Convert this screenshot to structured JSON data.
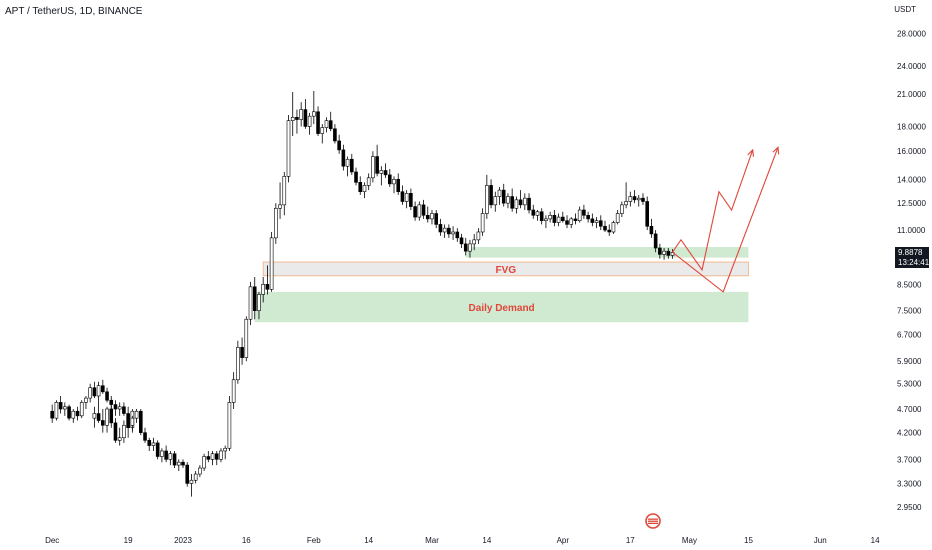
{
  "header": {
    "title": "APT / TetherUS, 1D, BINANCE",
    "unit": "USDT"
  },
  "price_tag": {
    "price": "9.8878",
    "countdown": "13:24:41"
  },
  "colors": {
    "up": "#ffffff",
    "down": "#000000",
    "wick": "#000000",
    "zone": "#c8e6c9",
    "fvg_border": "#f5a66b",
    "fvg_fill": "#e8e8e8",
    "arrow": "#e0463a",
    "label": "#e0463a"
  },
  "chart_data": {
    "type": "candlestick",
    "scale": "log",
    "y_ticks": [
      "28.0000",
      "24.0000",
      "21.0000",
      "18.0000",
      "16.0000",
      "14.0000",
      "12.5000",
      "11.0000",
      "9.7000",
      "8.5000",
      "7.5000",
      "6.7000",
      "5.9000",
      "5.3000",
      "4.7000",
      "4.2000",
      "3.7000",
      "3.3000",
      "2.9500"
    ],
    "x_ticks": [
      "Dec",
      "19",
      "2023",
      "16",
      "Feb",
      "14",
      "Mar",
      "14",
      "Apr",
      "17",
      "May",
      "15",
      "Jun",
      "14"
    ],
    "annotations": [
      {
        "label": "FVG",
        "from": "Jan 20",
        "to": "May 15",
        "low": 8.85,
        "high": 9.45
      },
      {
        "label": "Daily Demand",
        "from": "Jan 18",
        "to": "May 15",
        "low": 7.1,
        "high": 8.2
      },
      {
        "label": "",
        "from": "Mar 9",
        "to": "May 15",
        "low": 9.65,
        "high": 10.15
      }
    ],
    "projections": [
      {
        "path": [
          [
            "Apr 27",
            9.9
          ],
          [
            "Apr 29",
            10.5
          ],
          [
            "May 4",
            9.1
          ],
          [
            "May 8",
            13.2
          ],
          [
            "May 11",
            12.1
          ],
          [
            "May 16",
            16.1
          ]
        ]
      },
      {
        "path": [
          [
            "Apr 27",
            9.9
          ],
          [
            "May 9",
            8.2
          ],
          [
            "May 22",
            16.3
          ]
        ]
      }
    ],
    "candles": [
      [
        "Nov 21",
        4.5,
        4.75,
        4.3,
        4.6
      ],
      [
        "Nov 22",
        4.6,
        4.9,
        4.4,
        4.45
      ],
      [
        "Nov 23",
        4.45,
        4.7,
        4.2,
        4.35
      ],
      [
        "Nov 24",
        4.35,
        4.75,
        4.2,
        4.7
      ],
      [
        "Nov 25",
        4.7,
        4.8,
        4.3,
        4.4
      ],
      [
        "Nov 26",
        4.4,
        4.5,
        4.0,
        4.05
      ],
      [
        "Nov 27",
        4.05,
        4.3,
        3.95,
        4.1
      ],
      [
        "Nov 28",
        4.1,
        4.45,
        4.0,
        4.35
      ],
      [
        "Nov 29",
        4.35,
        4.45,
        4.1,
        4.3
      ],
      [
        "Nov 30",
        4.3,
        4.7,
        4.2,
        4.65
      ],
      [
        "Dec 1",
        4.65,
        4.8,
        4.4,
        4.5
      ],
      [
        "Dec 2",
        4.5,
        4.9,
        4.45,
        4.85
      ],
      [
        "Dec 3",
        4.85,
        5.0,
        4.6,
        4.7
      ],
      [
        "Dec 4",
        4.7,
        4.85,
        4.55,
        4.75
      ],
      [
        "Dec 5",
        4.75,
        4.8,
        4.45,
        4.5
      ],
      [
        "Dec 6",
        4.5,
        4.7,
        4.4,
        4.65
      ],
      [
        "Dec 7",
        4.65,
        4.75,
        4.45,
        4.55
      ],
      [
        "Dec 8",
        4.55,
        4.9,
        4.5,
        4.85
      ],
      [
        "Dec 9",
        4.85,
        5.0,
        4.7,
        4.95
      ],
      [
        "Dec 10",
        4.95,
        5.3,
        4.85,
        5.2
      ],
      [
        "Dec 11",
        5.2,
        5.35,
        4.95,
        5.0
      ],
      [
        "Dec 12",
        5.0,
        5.35,
        4.9,
        5.25
      ],
      [
        "Dec 13",
        5.25,
        5.4,
        5.05,
        5.1
      ],
      [
        "Dec 14",
        5.1,
        5.2,
        4.85,
        4.9
      ],
      [
        "Dec 15",
        4.9,
        5.0,
        4.7,
        4.8
      ],
      [
        "Dec 16",
        4.8,
        4.9,
        4.55,
        4.7
      ],
      [
        "Dec 17",
        4.7,
        4.85,
        4.55,
        4.75
      ],
      [
        "Dec 18",
        4.75,
        4.85,
        4.55,
        4.6
      ],
      [
        "Dec 19",
        4.6,
        4.75,
        4.3,
        4.35
      ],
      [
        "Dec 20",
        4.35,
        4.55,
        4.25,
        4.5
      ],
      [
        "Dec 21",
        4.5,
        4.7,
        4.4,
        4.65
      ],
      [
        "Dec 22",
        4.65,
        4.7,
        4.15,
        4.2
      ],
      [
        "Dec 23",
        4.2,
        4.3,
        4.0,
        4.05
      ],
      [
        "Dec 24",
        4.05,
        4.1,
        3.85,
        3.95
      ],
      [
        "Dec 25",
        3.95,
        4.1,
        3.85,
        4.0
      ],
      [
        "Dec 26",
        4.0,
        4.05,
        3.7,
        3.75
      ],
      [
        "Dec 27",
        3.75,
        3.9,
        3.65,
        3.85
      ],
      [
        "Dec 28",
        3.85,
        3.95,
        3.65,
        3.7
      ],
      [
        "Dec 29",
        3.7,
        3.85,
        3.6,
        3.8
      ],
      [
        "Dec 30",
        3.8,
        3.85,
        3.55,
        3.6
      ],
      [
        "Dec 31",
        3.6,
        3.7,
        3.5,
        3.65
      ],
      [
        "Jan 1",
        3.65,
        3.7,
        3.55,
        3.6
      ],
      [
        "Jan 2",
        3.6,
        3.65,
        3.25,
        3.3
      ],
      [
        "Jan 3",
        3.3,
        3.45,
        3.1,
        3.35
      ],
      [
        "Jan 4",
        3.35,
        3.5,
        3.3,
        3.45
      ],
      [
        "Jan 5",
        3.45,
        3.6,
        3.4,
        3.55
      ],
      [
        "Jan 6",
        3.55,
        3.8,
        3.5,
        3.75
      ],
      [
        "Jan 7",
        3.75,
        3.85,
        3.65,
        3.7
      ],
      [
        "Jan 8",
        3.7,
        3.85,
        3.6,
        3.8
      ],
      [
        "Jan 9",
        3.8,
        3.85,
        3.6,
        3.7
      ],
      [
        "Jan 10",
        3.7,
        3.9,
        3.65,
        3.85
      ],
      [
        "Jan 11",
        3.85,
        3.95,
        3.7,
        3.9
      ],
      [
        "Jan 12",
        3.9,
        5.0,
        3.85,
        4.85
      ],
      [
        "Jan 13",
        4.85,
        5.6,
        4.7,
        5.4
      ],
      [
        "Jan 14",
        5.4,
        6.5,
        5.3,
        6.3
      ],
      [
        "Jan 15",
        6.3,
        6.6,
        5.8,
        6.0
      ],
      [
        "Jan 16",
        6.0,
        7.3,
        5.9,
        7.2
      ],
      [
        "Jan 17",
        7.2,
        8.6,
        7.0,
        8.4
      ],
      [
        "Jan 18",
        8.4,
        8.8,
        7.2,
        7.5
      ],
      [
        "Jan 19",
        7.5,
        8.2,
        7.2,
        8.1
      ],
      [
        "Jan 20",
        8.1,
        8.8,
        7.8,
        8.5
      ],
      [
        "Jan 21",
        8.5,
        9.3,
        8.1,
        8.3
      ],
      [
        "Jan 22",
        8.3,
        10.9,
        8.2,
        10.6
      ],
      [
        "Jan 23",
        10.6,
        12.5,
        10.3,
        12.2
      ],
      [
        "Jan 24",
        12.2,
        13.8,
        11.6,
        12.4
      ],
      [
        "Jan 25",
        12.4,
        14.5,
        11.8,
        14.2
      ],
      [
        "Jan 26",
        14.2,
        19.0,
        13.8,
        18.5
      ],
      [
        "Jan 27",
        18.5,
        21.2,
        17.2,
        18.8
      ],
      [
        "Jan 28",
        18.8,
        19.5,
        17.4,
        18.6
      ],
      [
        "Jan 29",
        18.6,
        20.2,
        18.0,
        19.5
      ],
      [
        "Jan 30",
        19.5,
        20.5,
        17.8,
        18.0
      ],
      [
        "Jan 31",
        18.0,
        19.2,
        17.3,
        18.9
      ],
      [
        "Feb 1",
        18.9,
        21.3,
        18.2,
        19.3
      ],
      [
        "Feb 2",
        19.3,
        19.8,
        17.2,
        17.4
      ],
      [
        "Feb 3",
        17.4,
        18.2,
        16.6,
        17.9
      ],
      [
        "Feb 4",
        17.9,
        18.8,
        17.5,
        18.5
      ],
      [
        "Feb 5",
        18.5,
        19.3,
        17.6,
        17.8
      ],
      [
        "Feb 6",
        17.8,
        18.2,
        16.6,
        16.8
      ],
      [
        "Feb 7",
        16.8,
        17.3,
        15.8,
        16.1
      ],
      [
        "Feb 8",
        16.1,
        16.5,
        14.6,
        14.9
      ],
      [
        "Feb 9",
        14.9,
        15.6,
        14.2,
        15.4
      ],
      [
        "Feb 10",
        15.4,
        15.8,
        14.3,
        14.5
      ],
      [
        "Feb 11",
        14.5,
        14.8,
        13.6,
        13.8
      ],
      [
        "Feb 12",
        13.8,
        14.2,
        13.0,
        13.2
      ],
      [
        "Feb 13",
        13.2,
        13.8,
        12.8,
        13.6
      ],
      [
        "Feb 14",
        13.6,
        14.4,
        13.3,
        14.1
      ],
      [
        "Feb 15",
        14.1,
        16.0,
        13.8,
        15.6
      ],
      [
        "Feb 16",
        15.6,
        16.5,
        14.2,
        14.4
      ],
      [
        "Feb 17",
        14.4,
        14.9,
        13.6,
        14.6
      ],
      [
        "Feb 18",
        14.6,
        15.1,
        14.1,
        14.3
      ],
      [
        "Feb 19",
        14.3,
        14.7,
        13.5,
        13.7
      ],
      [
        "Feb 20",
        13.7,
        14.2,
        13.1,
        14.0
      ],
      [
        "Feb 21",
        14.0,
        14.4,
        13.0,
        13.2
      ],
      [
        "Feb 22",
        13.2,
        13.6,
        12.4,
        12.6
      ],
      [
        "Feb 23",
        12.6,
        13.3,
        12.2,
        13.1
      ],
      [
        "Feb 24",
        13.1,
        13.4,
        12.1,
        12.3
      ],
      [
        "Feb 25",
        12.3,
        12.6,
        11.5,
        11.7
      ],
      [
        "Feb 26",
        11.7,
        12.6,
        11.5,
        12.4
      ],
      [
        "Feb 27",
        12.4,
        12.7,
        11.6,
        11.8
      ],
      [
        "Feb 28",
        11.8,
        12.3,
        11.4,
        11.6
      ],
      [
        "Mar 1",
        11.6,
        12.1,
        11.3,
        11.9
      ],
      [
        "Mar 2",
        11.9,
        12.1,
        11.1,
        11.3
      ],
      [
        "Mar 3",
        11.3,
        11.6,
        10.7,
        10.9
      ],
      [
        "Mar 4",
        10.9,
        11.3,
        10.6,
        11.1
      ],
      [
        "Mar 5",
        11.1,
        11.3,
        10.6,
        10.8
      ],
      [
        "Mar 6",
        10.8,
        11.2,
        10.5,
        10.9
      ],
      [
        "Mar 7",
        10.9,
        11.1,
        10.4,
        10.6
      ],
      [
        "Mar 8",
        10.6,
        10.8,
        10.1,
        10.3
      ],
      [
        "Mar 9",
        10.3,
        10.6,
        9.75,
        9.95
      ],
      [
        "Mar 10",
        9.95,
        10.5,
        9.65,
        10.3
      ],
      [
        "Mar 11",
        10.3,
        10.8,
        10.0,
        10.5
      ],
      [
        "Mar 12",
        10.5,
        11.1,
        10.3,
        10.9
      ],
      [
        "Mar 13",
        10.9,
        12.2,
        10.7,
        11.9
      ],
      [
        "Mar 14",
        11.9,
        14.3,
        11.6,
        13.6
      ],
      [
        "Mar 15",
        13.6,
        14.0,
        12.2,
        12.4
      ],
      [
        "Mar 16",
        12.4,
        13.2,
        12.0,
        12.9
      ],
      [
        "Mar 17",
        12.9,
        13.5,
        12.4,
        13.3
      ],
      [
        "Mar 18",
        13.3,
        13.7,
        12.3,
        12.5
      ],
      [
        "Mar 19",
        12.5,
        13.1,
        12.2,
        12.9
      ],
      [
        "Mar 20",
        12.9,
        13.4,
        12.0,
        12.2
      ],
      [
        "Mar 21",
        12.2,
        12.9,
        11.9,
        12.7
      ],
      [
        "Mar 22",
        12.7,
        13.3,
        12.2,
        12.4
      ],
      [
        "Mar 23",
        12.4,
        13.1,
        12.1,
        12.8
      ],
      [
        "Mar 24",
        12.8,
        13.1,
        11.9,
        12.1
      ],
      [
        "Mar 25",
        12.1,
        12.4,
        11.6,
        11.8
      ],
      [
        "Mar 26",
        11.8,
        12.1,
        11.5,
        12.0
      ],
      [
        "Mar 27",
        12.0,
        12.2,
        11.3,
        11.5
      ],
      [
        "Mar 28",
        11.5,
        11.8,
        11.1,
        11.6
      ],
      [
        "Mar 29",
        11.6,
        12.0,
        11.4,
        11.8
      ],
      [
        "Mar 30",
        11.8,
        12.1,
        11.2,
        11.4
      ],
      [
        "Mar 31",
        11.4,
        11.9,
        11.2,
        11.7
      ],
      [
        "Apr 1",
        11.7,
        12.0,
        11.4,
        11.5
      ],
      [
        "Apr 2",
        11.5,
        11.8,
        11.1,
        11.3
      ],
      [
        "Apr 3",
        11.3,
        11.7,
        11.1,
        11.6
      ],
      [
        "Apr 4",
        11.6,
        11.9,
        11.3,
        11.5
      ],
      [
        "Apr 5",
        11.5,
        12.3,
        11.4,
        12.1
      ],
      [
        "Apr 6",
        12.1,
        12.4,
        11.6,
        11.8
      ],
      [
        "Apr 7",
        11.8,
        12.0,
        11.4,
        11.6
      ],
      [
        "Apr 8",
        11.6,
        11.9,
        11.2,
        11.4
      ],
      [
        "Apr 9",
        11.4,
        11.7,
        11.1,
        11.5
      ],
      [
        "Apr 10",
        11.5,
        11.8,
        11.0,
        11.2
      ],
      [
        "Apr 11",
        11.2,
        11.5,
        10.9,
        11.0
      ],
      [
        "Apr 12",
        11.0,
        11.3,
        10.7,
        10.9
      ],
      [
        "Apr 13",
        10.9,
        11.5,
        10.8,
        11.4
      ],
      [
        "Apr 14",
        11.4,
        12.1,
        11.3,
        11.9
      ],
      [
        "Apr 15",
        11.9,
        12.6,
        11.7,
        12.4
      ],
      [
        "Apr 16",
        12.4,
        13.8,
        12.2,
        12.6
      ],
      [
        "Apr 17",
        12.6,
        13.2,
        12.3,
        12.9
      ],
      [
        "Apr 18",
        12.9,
        13.3,
        12.5,
        12.7
      ],
      [
        "Apr 19",
        12.7,
        13.0,
        12.3,
        12.8
      ],
      [
        "Apr 20",
        12.8,
        13.1,
        12.4,
        12.6
      ],
      [
        "Apr 21",
        12.6,
        12.9,
        11.0,
        11.2
      ],
      [
        "Apr 22",
        11.2,
        11.6,
        10.6,
        10.8
      ],
      [
        "Apr 23",
        10.8,
        11.0,
        9.9,
        10.1
      ],
      [
        "Apr 24",
        10.1,
        10.3,
        9.6,
        9.8
      ],
      [
        "Apr 25",
        9.8,
        10.1,
        9.55,
        9.95
      ],
      [
        "Apr 26",
        9.95,
        10.1,
        9.6,
        9.75
      ],
      [
        "Apr 27",
        9.75,
        10.05,
        9.6,
        9.89
      ]
    ]
  }
}
